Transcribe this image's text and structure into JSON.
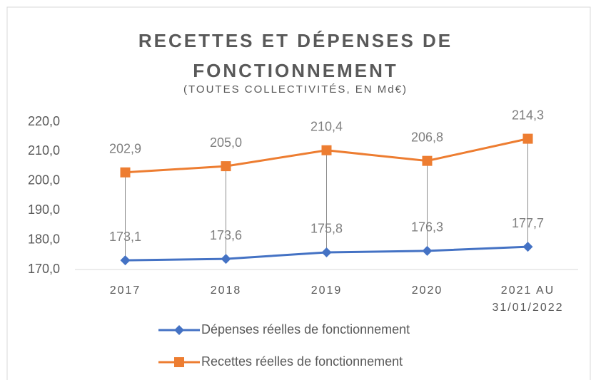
{
  "chart_data": {
    "type": "line",
    "title": "RECETTES ET DÉPENSES DE FONCTIONNEMENT",
    "subtitle": "(TOUTES COLLECTIVITÉS, EN Md€)",
    "categories": [
      "2017",
      "2018",
      "2019",
      "2020",
      "2021 AU 31/01/2022"
    ],
    "series": [
      {
        "name": "Dépenses réelles de fonctionnement",
        "color": "#4472c4",
        "marker": "diamond",
        "values": [
          173.1,
          173.6,
          175.8,
          176.3,
          177.7
        ],
        "value_labels": [
          "173,1",
          "173,6",
          "175,8",
          "176,3",
          "177,7"
        ]
      },
      {
        "name": "Recettes réelles de fonctionnement",
        "color": "#ed7d31",
        "marker": "square",
        "values": [
          202.9,
          205.0,
          210.4,
          206.8,
          214.3
        ],
        "value_labels": [
          "202,9",
          "205,0",
          "210,4",
          "206,8",
          "214,3"
        ]
      }
    ],
    "ylim": [
      170,
      220
    ],
    "yticks": [
      {
        "value": 170,
        "label": "170,0"
      },
      {
        "value": 180,
        "label": "180,0"
      },
      {
        "value": 190,
        "label": "190,0"
      },
      {
        "value": 200,
        "label": "200,0"
      },
      {
        "value": 210,
        "label": "210,0"
      },
      {
        "value": 220,
        "label": "220,0"
      }
    ],
    "grid": false,
    "drop_lines": true,
    "legend": "bottom"
  }
}
